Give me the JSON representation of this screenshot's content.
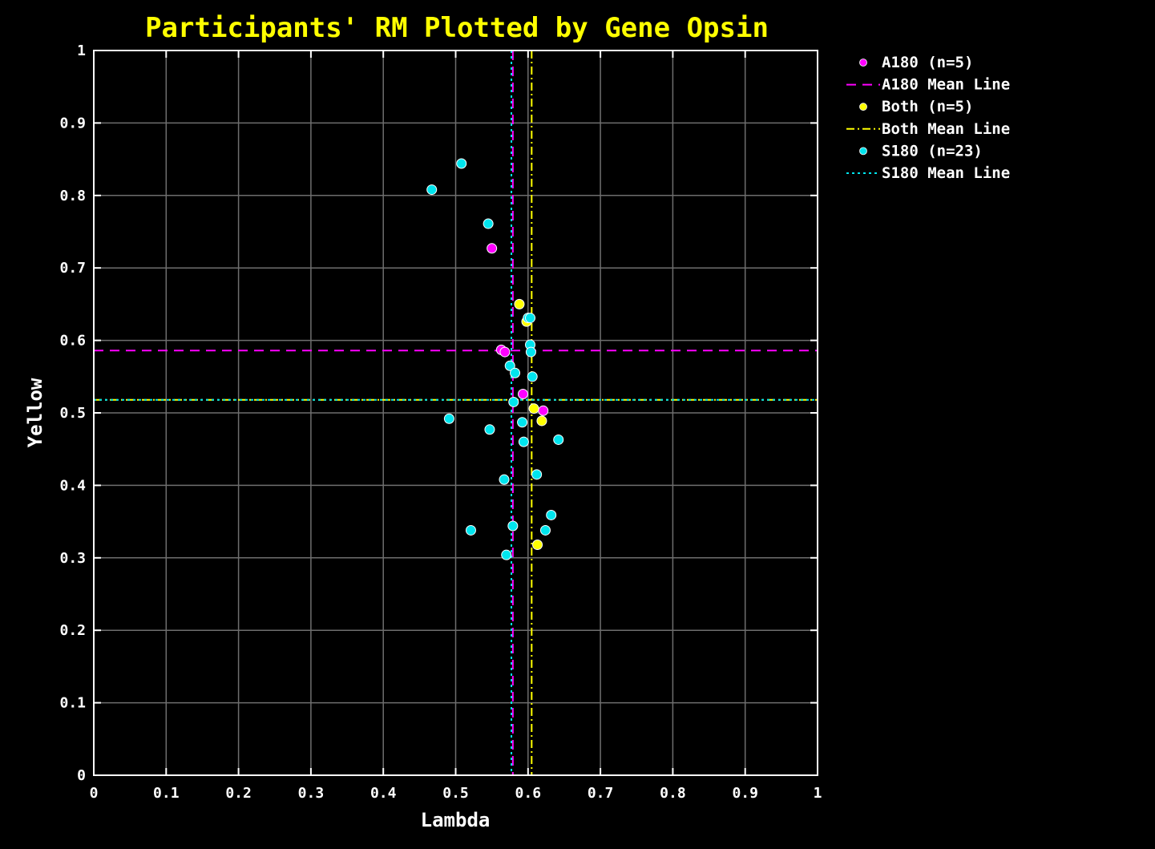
{
  "chart_data": {
    "type": "scatter",
    "title": "Participants' RM Plotted by Gene Opsin",
    "xlabel": "Lambda",
    "ylabel": "Yellow",
    "xlim": [
      0,
      1
    ],
    "ylim": [
      0,
      1
    ],
    "x_ticks": [
      "0",
      "0.1",
      "0.2",
      "0.3",
      "0.4",
      "0.5",
      "0.6",
      "0.7",
      "0.8",
      "0.9",
      "1"
    ],
    "y_ticks": [
      "0",
      "0.1",
      "0.2",
      "0.3",
      "0.4",
      "0.5",
      "0.6",
      "0.7",
      "0.8",
      "0.9",
      "1"
    ],
    "grid": true,
    "legend_position": "outside-top-right",
    "series": [
      {
        "name": "A180 (n=5)",
        "color": "#ff00ff",
        "points": [
          {
            "x": 0.55,
            "y": 0.727
          },
          {
            "x": 0.563,
            "y": 0.587
          },
          {
            "x": 0.568,
            "y": 0.584
          },
          {
            "x": 0.593,
            "y": 0.526
          },
          {
            "x": 0.621,
            "y": 0.503
          }
        ]
      },
      {
        "name": "Both (n=5)",
        "color": "#ffff00",
        "points": [
          {
            "x": 0.588,
            "y": 0.65
          },
          {
            "x": 0.598,
            "y": 0.626
          },
          {
            "x": 0.608,
            "y": 0.506
          },
          {
            "x": 0.619,
            "y": 0.489
          },
          {
            "x": 0.613,
            "y": 0.318
          }
        ]
      },
      {
        "name": "S180 (n=23)",
        "color": "#00e5ee",
        "points": [
          {
            "x": 0.467,
            "y": 0.808
          },
          {
            "x": 0.508,
            "y": 0.844
          },
          {
            "x": 0.545,
            "y": 0.761
          },
          {
            "x": 0.6,
            "y": 0.631
          },
          {
            "x": 0.603,
            "y": 0.631
          },
          {
            "x": 0.603,
            "y": 0.594
          },
          {
            "x": 0.604,
            "y": 0.584
          },
          {
            "x": 0.575,
            "y": 0.565
          },
          {
            "x": 0.582,
            "y": 0.555
          },
          {
            "x": 0.606,
            "y": 0.55
          },
          {
            "x": 0.58,
            "y": 0.515
          },
          {
            "x": 0.491,
            "y": 0.492
          },
          {
            "x": 0.592,
            "y": 0.487
          },
          {
            "x": 0.547,
            "y": 0.477
          },
          {
            "x": 0.594,
            "y": 0.46
          },
          {
            "x": 0.642,
            "y": 0.463
          },
          {
            "x": 0.612,
            "y": 0.415
          },
          {
            "x": 0.567,
            "y": 0.408
          },
          {
            "x": 0.632,
            "y": 0.359
          },
          {
            "x": 0.579,
            "y": 0.344
          },
          {
            "x": 0.624,
            "y": 0.338
          },
          {
            "x": 0.521,
            "y": 0.338
          },
          {
            "x": 0.57,
            "y": 0.304
          }
        ]
      }
    ],
    "mean_lines": [
      {
        "name": "A180 Mean Line",
        "color": "#ff00ff",
        "style": "dashed",
        "x": 0.579,
        "y": 0.586
      },
      {
        "name": "Both Mean Line",
        "color": "#ffff00",
        "style": "dashdot",
        "x": 0.605,
        "y": 0.518
      },
      {
        "name": "S180 Mean Line",
        "color": "#00e5ee",
        "style": "dotted",
        "x": 0.577,
        "y": 0.518
      }
    ]
  }
}
